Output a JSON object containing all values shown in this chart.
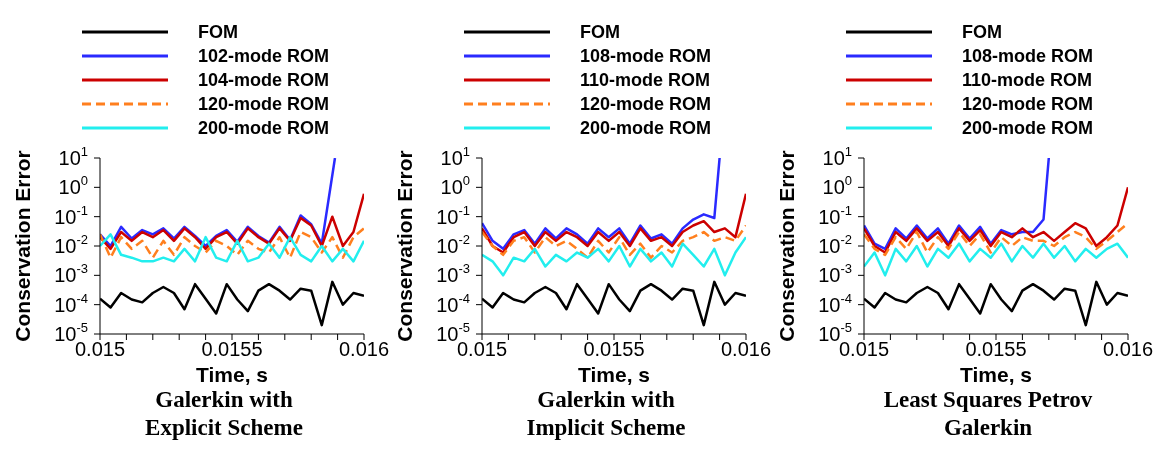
{
  "chart_data": [
    {
      "type": "line",
      "title": "Galerkin with\nExplicit Scheme",
      "xlabel": "Time, s",
      "ylabel": "Conservation Error",
      "log": "y",
      "legend": "top",
      "marker": "none",
      "grid": false,
      "xlim": [
        0.015,
        0.016
      ],
      "xticks": [
        0.015,
        {
          "value": 0.0151,
          "label": null
        },
        {
          "value": 0.0152,
          "label": null
        },
        {
          "value": 0.0153,
          "label": null
        },
        {
          "value": 0.0154,
          "label": null
        },
        0.0155,
        {
          "value": 0.0156,
          "label": null
        },
        {
          "value": 0.0157,
          "label": null
        },
        {
          "value": 0.0158,
          "label": null
        },
        {
          "value": 0.0159,
          "label": null
        },
        0.016
      ],
      "ylim": [
        1e-05,
        10
      ],
      "yticks": [
        {
          "value": 1e-05,
          "label": "10$^{-5}$"
        },
        {
          "value": 0.0001,
          "label": "10$^{-4}$"
        },
        {
          "value": 0.001,
          "label": "10$^{-3}$"
        },
        {
          "value": 0.01,
          "label": "10$^{-2}$"
        },
        {
          "value": 0.1,
          "label": "10$^{-1}$"
        },
        {
          "value": 1,
          "label": "10$^{0}$"
        },
        {
          "value": 10,
          "label": "10$^{1}$"
        }
      ],
      "x": [
        0.015,
        0.01504,
        0.01508,
        0.01512,
        0.01516,
        0.0152,
        0.01524,
        0.01528,
        0.01532,
        0.01536,
        0.0154,
        0.01544,
        0.01548,
        0.01552,
        0.01556,
        0.0156,
        0.01564,
        0.01568,
        0.01572,
        0.01576,
        0.0158,
        0.01584,
        0.01588,
        0.01592,
        0.01596,
        0.016
      ],
      "series": [
        {
          "name": "FOM",
          "color": "#000000",
          "line_style": "solid",
          "values": [
            0.00016,
            8e-05,
            0.00025,
            0.00015,
            0.00012,
            0.00025,
            0.0004,
            0.00025,
            7e-05,
            0.0005,
            0.00016,
            5e-05,
            0.0005,
            0.00015,
            6e-05,
            0.0003,
            0.0005,
            0.0003,
            0.00015,
            0.00035,
            0.0003,
            2e-05,
            0.0006,
            0.0001,
            0.00025,
            0.0002
          ]
        },
        {
          "name": "102-mode ROM",
          "color": "#2a2aff",
          "line_style": "solid",
          "x": [
            0.015,
            0.01504,
            0.01508,
            0.01512,
            0.01516,
            0.0152,
            0.01524,
            0.01528,
            0.01532,
            0.01536,
            0.0154,
            0.01544,
            0.01548,
            0.01552,
            0.01556,
            0.0156,
            0.01564,
            0.01568,
            0.01572,
            0.01576,
            0.0158,
            0.01584,
            0.01589
          ],
          "values": [
            0.025,
            0.01,
            0.045,
            0.018,
            0.035,
            0.025,
            0.04,
            0.018,
            0.045,
            0.022,
            0.01,
            0.022,
            0.035,
            0.014,
            0.045,
            0.022,
            0.013,
            0.045,
            0.016,
            0.11,
            0.055,
            0.012,
            10
          ]
        },
        {
          "name": "104-mode ROM",
          "color": "#cc0000",
          "line_style": "solid",
          "values": [
            0.02,
            0.008,
            0.03,
            0.015,
            0.03,
            0.02,
            0.035,
            0.015,
            0.04,
            0.02,
            0.008,
            0.02,
            0.03,
            0.012,
            0.04,
            0.02,
            0.012,
            0.04,
            0.015,
            0.09,
            0.05,
            0.01,
            0.1,
            0.01,
            0.03,
            0.6
          ]
        },
        {
          "name": "120-mode ROM",
          "color": "#ff7f1e",
          "line_style": "dashed",
          "values": [
            0.025,
            0.004,
            0.02,
            0.008,
            0.015,
            0.004,
            0.015,
            0.005,
            0.02,
            0.01,
            0.006,
            0.015,
            0.01,
            0.005,
            0.015,
            0.008,
            0.006,
            0.02,
            0.004,
            0.03,
            0.02,
            0.006,
            0.02,
            0.004,
            0.02,
            0.04
          ]
        },
        {
          "name": "200-mode ROM",
          "color": "#22eeee",
          "line_style": "solid",
          "values": [
            0.01,
            0.025,
            0.005,
            0.004,
            0.003,
            0.003,
            0.004,
            0.003,
            0.008,
            0.003,
            0.02,
            0.004,
            0.003,
            0.015,
            0.003,
            0.004,
            0.012,
            0.004,
            0.02,
            0.005,
            0.003,
            0.01,
            0.003,
            0.008,
            0.003,
            0.015
          ]
        }
      ]
    },
    {
      "type": "line",
      "title": "Galerkin with\nImplicit Scheme",
      "xlabel": "Time, s",
      "ylabel": "Conservation Error",
      "log": "y",
      "legend": "top",
      "marker": "none",
      "grid": false,
      "xlim": [
        0.015,
        0.016
      ],
      "xticks": [
        0.015,
        {
          "value": 0.0151,
          "label": null
        },
        {
          "value": 0.0152,
          "label": null
        },
        {
          "value": 0.0153,
          "label": null
        },
        {
          "value": 0.0154,
          "label": null
        },
        0.0155,
        {
          "value": 0.0156,
          "label": null
        },
        {
          "value": 0.0157,
          "label": null
        },
        {
          "value": 0.0158,
          "label": null
        },
        {
          "value": 0.0159,
          "label": null
        },
        0.016
      ],
      "ylim": [
        1e-05,
        10
      ],
      "yticks": [
        {
          "value": 1e-05,
          "label": "10$^{-5}$"
        },
        {
          "value": 0.0001,
          "label": "10$^{-4}$"
        },
        {
          "value": 0.001,
          "label": "10$^{-3}$"
        },
        {
          "value": 0.01,
          "label": "10$^{-2}$"
        },
        {
          "value": 0.1,
          "label": "10$^{-1}$"
        },
        {
          "value": 1,
          "label": "10$^{0}$"
        },
        {
          "value": 10,
          "label": "10$^{1}$"
        }
      ],
      "x": [
        0.015,
        0.01504,
        0.01508,
        0.01512,
        0.01516,
        0.0152,
        0.01524,
        0.01528,
        0.01532,
        0.01536,
        0.0154,
        0.01544,
        0.01548,
        0.01552,
        0.01556,
        0.0156,
        0.01564,
        0.01568,
        0.01572,
        0.01576,
        0.0158,
        0.01584,
        0.01588,
        0.01592,
        0.01596,
        0.016
      ],
      "series": [
        {
          "name": "FOM",
          "color": "#000000",
          "line_style": "solid",
          "values": [
            0.00016,
            8e-05,
            0.00025,
            0.00015,
            0.00012,
            0.00025,
            0.0004,
            0.00025,
            7e-05,
            0.0005,
            0.00016,
            5e-05,
            0.0005,
            0.00015,
            6e-05,
            0.0003,
            0.0005,
            0.0003,
            0.00015,
            0.00035,
            0.0003,
            2e-05,
            0.0006,
            0.0001,
            0.00025,
            0.0002
          ]
        },
        {
          "name": "108-mode ROM",
          "color": "#2a2aff",
          "line_style": "solid",
          "x": [
            0.015,
            0.01504,
            0.01508,
            0.01512,
            0.01516,
            0.0152,
            0.01524,
            0.01528,
            0.01532,
            0.01536,
            0.0154,
            0.01544,
            0.01548,
            0.01552,
            0.01556,
            0.0156,
            0.01564,
            0.01568,
            0.01572,
            0.01576,
            0.0158,
            0.01584,
            0.01588,
            0.0159
          ],
          "values": [
            0.06,
            0.015,
            0.008,
            0.025,
            0.035,
            0.012,
            0.04,
            0.018,
            0.04,
            0.025,
            0.012,
            0.04,
            0.02,
            0.04,
            0.012,
            0.05,
            0.018,
            0.025,
            0.012,
            0.04,
            0.08,
            0.12,
            0.09,
            10
          ]
        },
        {
          "name": "110-mode ROM",
          "color": "#cc0000",
          "line_style": "solid",
          "values": [
            0.04,
            0.01,
            0.006,
            0.02,
            0.03,
            0.01,
            0.03,
            0.015,
            0.03,
            0.02,
            0.01,
            0.03,
            0.015,
            0.03,
            0.01,
            0.04,
            0.015,
            0.02,
            0.01,
            0.03,
            0.05,
            0.07,
            0.03,
            0.04,
            0.02,
            0.6
          ]
        },
        {
          "name": "120-mode ROM",
          "color": "#ff7f1e",
          "line_style": "dashed",
          "values": [
            0.03,
            0.01,
            0.005,
            0.015,
            0.02,
            0.006,
            0.02,
            0.01,
            0.015,
            0.008,
            0.004,
            0.015,
            0.006,
            0.02,
            0.005,
            0.012,
            0.004,
            0.01,
            0.006,
            0.015,
            0.02,
            0.03,
            0.015,
            0.02,
            0.015,
            0.05
          ]
        },
        {
          "name": "200-mode ROM",
          "color": "#22eeee",
          "line_style": "solid",
          "values": [
            0.005,
            0.003,
            0.001,
            0.004,
            0.003,
            0.008,
            0.002,
            0.005,
            0.003,
            0.006,
            0.004,
            0.008,
            0.003,
            0.01,
            0.002,
            0.008,
            0.003,
            0.006,
            0.002,
            0.012,
            0.005,
            0.002,
            0.008,
            0.001,
            0.006,
            0.02
          ]
        }
      ]
    },
    {
      "type": "line",
      "title": "Least Squares Petrov\nGalerkin",
      "xlabel": "Time, s",
      "ylabel": "Conservation Error",
      "log": "y",
      "legend": "top",
      "marker": "none",
      "grid": false,
      "xlim": [
        0.015,
        0.016
      ],
      "xticks": [
        0.015,
        {
          "value": 0.0151,
          "label": null
        },
        {
          "value": 0.0152,
          "label": null
        },
        {
          "value": 0.0153,
          "label": null
        },
        {
          "value": 0.0154,
          "label": null
        },
        0.0155,
        {
          "value": 0.0156,
          "label": null
        },
        {
          "value": 0.0157,
          "label": null
        },
        {
          "value": 0.0158,
          "label": null
        },
        {
          "value": 0.0159,
          "label": null
        },
        0.016
      ],
      "ylim": [
        1e-05,
        10
      ],
      "yticks": [
        {
          "value": 1e-05,
          "label": "10$^{-5}$"
        },
        {
          "value": 0.0001,
          "label": "10$^{-4}$"
        },
        {
          "value": 0.001,
          "label": "10$^{-3}$"
        },
        {
          "value": 0.01,
          "label": "10$^{-2}$"
        },
        {
          "value": 0.1,
          "label": "10$^{-1}$"
        },
        {
          "value": 1,
          "label": "10$^{0}$"
        },
        {
          "value": 10,
          "label": "10$^{1}$"
        }
      ],
      "x": [
        0.015,
        0.01504,
        0.01508,
        0.01512,
        0.01516,
        0.0152,
        0.01524,
        0.01528,
        0.01532,
        0.01536,
        0.0154,
        0.01544,
        0.01548,
        0.01552,
        0.01556,
        0.0156,
        0.01564,
        0.01568,
        0.01572,
        0.01576,
        0.0158,
        0.01584,
        0.01588,
        0.01592,
        0.01596,
        0.016
      ],
      "series": [
        {
          "name": "FOM",
          "color": "#000000",
          "line_style": "solid",
          "values": [
            0.00016,
            8e-05,
            0.00025,
            0.00015,
            0.00012,
            0.00025,
            0.0004,
            0.00025,
            7e-05,
            0.0005,
            0.00016,
            5e-05,
            0.0005,
            0.00015,
            6e-05,
            0.0003,
            0.0005,
            0.0003,
            0.00015,
            0.00035,
            0.0003,
            2e-05,
            0.0006,
            0.0001,
            0.00025,
            0.0002
          ]
        },
        {
          "name": "108-mode ROM",
          "color": "#2a2aff",
          "line_style": "solid",
          "x": [
            0.015,
            0.01504,
            0.01508,
            0.01512,
            0.01516,
            0.0152,
            0.01524,
            0.01528,
            0.01532,
            0.01536,
            0.0154,
            0.01544,
            0.01548,
            0.01552,
            0.01556,
            0.0156,
            0.01564,
            0.01568,
            0.0157
          ],
          "values": [
            0.05,
            0.012,
            0.008,
            0.04,
            0.018,
            0.05,
            0.018,
            0.04,
            0.012,
            0.05,
            0.018,
            0.045,
            0.012,
            0.035,
            0.025,
            0.03,
            0.03,
            0.08,
            10
          ]
        },
        {
          "name": "110-mode ROM",
          "color": "#cc0000",
          "line_style": "solid",
          "values": [
            0.04,
            0.01,
            0.006,
            0.03,
            0.015,
            0.04,
            0.015,
            0.03,
            0.01,
            0.04,
            0.015,
            0.035,
            0.01,
            0.03,
            0.02,
            0.04,
            0.02,
            0.03,
            0.015,
            0.03,
            0.06,
            0.04,
            0.01,
            0.02,
            0.05,
            1
          ]
        },
        {
          "name": "120-mode ROM",
          "color": "#ff7f1e",
          "line_style": "dashed",
          "values": [
            0.025,
            0.008,
            0.005,
            0.02,
            0.008,
            0.03,
            0.006,
            0.02,
            0.008,
            0.03,
            0.01,
            0.025,
            0.006,
            0.02,
            0.01,
            0.02,
            0.015,
            0.015,
            0.01,
            0.02,
            0.03,
            0.02,
            0.008,
            0.015,
            0.03,
            0.06
          ]
        },
        {
          "name": "200-mode ROM",
          "color": "#22eeee",
          "line_style": "solid",
          "values": [
            0.002,
            0.006,
            0.001,
            0.008,
            0.003,
            0.01,
            0.002,
            0.008,
            0.004,
            0.012,
            0.003,
            0.008,
            0.004,
            0.012,
            0.003,
            0.01,
            0.004,
            0.012,
            0.004,
            0.01,
            0.003,
            0.008,
            0.004,
            0.008,
            0.012,
            0.004
          ]
        }
      ]
    }
  ]
}
